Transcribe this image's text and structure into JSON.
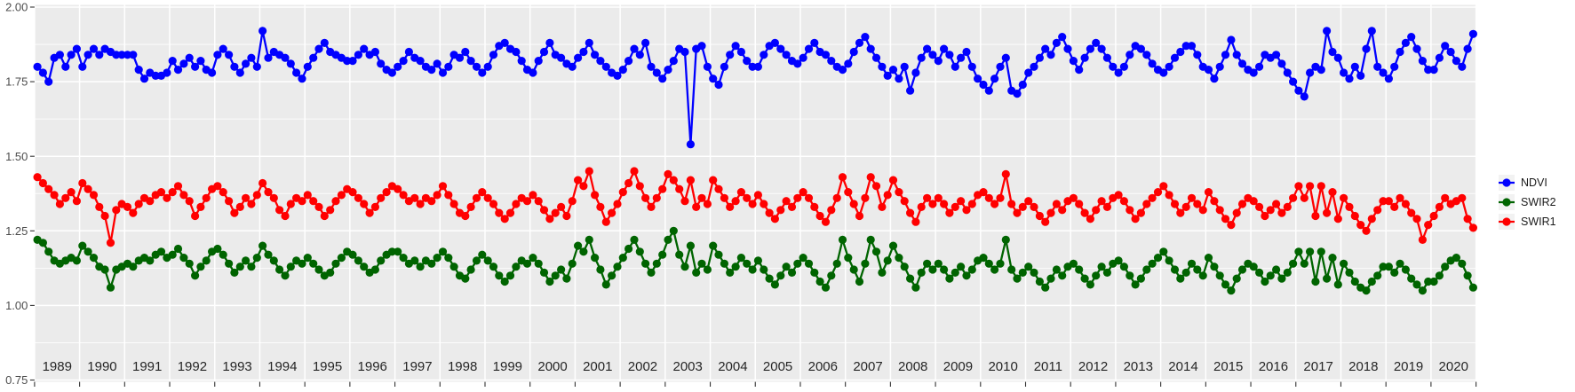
{
  "style": {
    "background": "#FFFFFF",
    "panel_fill": "#EBEBEB",
    "grid_color": "#FFFFFF",
    "tick_color": "#333333",
    "y_label_color": "#4d4d4d",
    "x_label_color": "#262626"
  },
  "axes": {
    "y": {
      "values": [
        2.0,
        1.75,
        1.5,
        1.25,
        1.0,
        0.75
      ],
      "labels": [
        "2.00",
        "1.75",
        "1.50",
        "1.25",
        "1.00",
        "0.75"
      ]
    },
    "x": {
      "first_year": 1989,
      "year_labels": [
        "1989",
        "1990",
        "1991",
        "1992",
        "1993",
        "1994",
        "1995",
        "1996",
        "1997",
        "1998",
        "1999",
        "2000",
        "2001",
        "2002",
        "2003",
        "2004",
        "2005",
        "2006",
        "2007",
        "2008",
        "2009",
        "2010",
        "2011",
        "2012",
        "2013",
        "2014",
        "2015",
        "2016",
        "2017",
        "2018",
        "2019",
        "2020"
      ]
    }
  },
  "legend": {
    "key_fill": "#F2F2F2",
    "items": [
      {
        "label": "NDVI",
        "color": "#0000FF"
      },
      {
        "label": "SWIR2",
        "color": "#006400"
      },
      {
        "label": "SWIR1",
        "color": "#FF0000"
      }
    ]
  },
  "chart_data": {
    "type": "line",
    "title": "",
    "xlabel": "",
    "ylabel": "",
    "xlim": [
      1989,
      2021
    ],
    "ylim": [
      0.75,
      2.0
    ],
    "grid": true,
    "legend_position": "right",
    "x_start": 1989.0625,
    "x_step": 0.125,
    "series": [
      {
        "name": "NDVI",
        "color": "#0000FF",
        "values": [
          1.8,
          1.78,
          1.75,
          1.83,
          1.84,
          1.8,
          1.84,
          1.86,
          1.8,
          1.84,
          1.86,
          1.84,
          1.86,
          1.85,
          1.84,
          1.84,
          1.84,
          1.84,
          1.79,
          1.76,
          1.78,
          1.77,
          1.77,
          1.78,
          1.82,
          1.79,
          1.81,
          1.83,
          1.8,
          1.82,
          1.79,
          1.78,
          1.84,
          1.86,
          1.84,
          1.8,
          1.78,
          1.81,
          1.83,
          1.8,
          1.92,
          1.83,
          1.85,
          1.84,
          1.83,
          1.81,
          1.78,
          1.76,
          1.8,
          1.83,
          1.86,
          1.88,
          1.85,
          1.84,
          1.83,
          1.82,
          1.82,
          1.84,
          1.86,
          1.84,
          1.85,
          1.81,
          1.79,
          1.78,
          1.8,
          1.82,
          1.85,
          1.83,
          1.82,
          1.8,
          1.79,
          1.81,
          1.78,
          1.8,
          1.84,
          1.83,
          1.85,
          1.82,
          1.8,
          1.78,
          1.8,
          1.84,
          1.87,
          1.88,
          1.86,
          1.85,
          1.82,
          1.79,
          1.78,
          1.82,
          1.85,
          1.88,
          1.84,
          1.83,
          1.81,
          1.8,
          1.83,
          1.85,
          1.88,
          1.84,
          1.82,
          1.8,
          1.78,
          1.77,
          1.79,
          1.82,
          1.86,
          1.84,
          1.88,
          1.8,
          1.78,
          1.76,
          1.79,
          1.82,
          1.86,
          1.85,
          1.54,
          1.86,
          1.87,
          1.8,
          1.76,
          1.74,
          1.8,
          1.84,
          1.87,
          1.85,
          1.82,
          1.8,
          1.8,
          1.84,
          1.87,
          1.88,
          1.86,
          1.84,
          1.82,
          1.81,
          1.83,
          1.86,
          1.88,
          1.85,
          1.84,
          1.82,
          1.8,
          1.79,
          1.81,
          1.85,
          1.88,
          1.9,
          1.86,
          1.83,
          1.8,
          1.77,
          1.79,
          1.76,
          1.8,
          1.72,
          1.78,
          1.83,
          1.86,
          1.84,
          1.82,
          1.86,
          1.84,
          1.8,
          1.83,
          1.85,
          1.8,
          1.76,
          1.74,
          1.72,
          1.76,
          1.8,
          1.83,
          1.72,
          1.71,
          1.74,
          1.78,
          1.8,
          1.83,
          1.86,
          1.84,
          1.88,
          1.9,
          1.86,
          1.82,
          1.79,
          1.83,
          1.86,
          1.88,
          1.86,
          1.83,
          1.8,
          1.78,
          1.8,
          1.84,
          1.87,
          1.86,
          1.84,
          1.81,
          1.79,
          1.78,
          1.8,
          1.83,
          1.85,
          1.87,
          1.87,
          1.84,
          1.8,
          1.79,
          1.76,
          1.8,
          1.84,
          1.89,
          1.84,
          1.81,
          1.79,
          1.78,
          1.8,
          1.84,
          1.83,
          1.84,
          1.81,
          1.78,
          1.75,
          1.72,
          1.7,
          1.78,
          1.8,
          1.79,
          1.92,
          1.85,
          1.83,
          1.78,
          1.76,
          1.8,
          1.77,
          1.86,
          1.92,
          1.8,
          1.78,
          1.76,
          1.8,
          1.85,
          1.88,
          1.9,
          1.86,
          1.82,
          1.79,
          1.79,
          1.83,
          1.87,
          1.85,
          1.82,
          1.8,
          1.86,
          1.91
        ]
      },
      {
        "name": "SWIR2",
        "color": "#006400",
        "values": [
          1.22,
          1.21,
          1.18,
          1.15,
          1.14,
          1.15,
          1.16,
          1.15,
          1.2,
          1.18,
          1.16,
          1.13,
          1.12,
          1.06,
          1.12,
          1.13,
          1.14,
          1.13,
          1.15,
          1.16,
          1.15,
          1.17,
          1.18,
          1.16,
          1.17,
          1.19,
          1.16,
          1.14,
          1.1,
          1.13,
          1.15,
          1.18,
          1.19,
          1.17,
          1.14,
          1.11,
          1.13,
          1.15,
          1.13,
          1.16,
          1.2,
          1.17,
          1.15,
          1.12,
          1.1,
          1.13,
          1.15,
          1.14,
          1.16,
          1.14,
          1.12,
          1.1,
          1.11,
          1.14,
          1.16,
          1.18,
          1.17,
          1.15,
          1.13,
          1.11,
          1.12,
          1.15,
          1.17,
          1.18,
          1.18,
          1.16,
          1.14,
          1.15,
          1.13,
          1.15,
          1.14,
          1.16,
          1.18,
          1.16,
          1.13,
          1.1,
          1.09,
          1.12,
          1.15,
          1.17,
          1.15,
          1.13,
          1.1,
          1.08,
          1.1,
          1.13,
          1.15,
          1.14,
          1.16,
          1.14,
          1.11,
          1.08,
          1.1,
          1.12,
          1.09,
          1.14,
          1.2,
          1.18,
          1.22,
          1.16,
          1.12,
          1.07,
          1.1,
          1.13,
          1.16,
          1.19,
          1.22,
          1.18,
          1.14,
          1.11,
          1.14,
          1.17,
          1.22,
          1.25,
          1.17,
          1.13,
          1.2,
          1.11,
          1.14,
          1.12,
          1.2,
          1.17,
          1.14,
          1.11,
          1.13,
          1.16,
          1.14,
          1.12,
          1.15,
          1.12,
          1.09,
          1.07,
          1.1,
          1.13,
          1.11,
          1.14,
          1.16,
          1.14,
          1.11,
          1.08,
          1.06,
          1.1,
          1.14,
          1.22,
          1.16,
          1.12,
          1.08,
          1.14,
          1.22,
          1.18,
          1.11,
          1.15,
          1.2,
          1.16,
          1.13,
          1.09,
          1.06,
          1.11,
          1.14,
          1.12,
          1.14,
          1.12,
          1.09,
          1.11,
          1.13,
          1.1,
          1.12,
          1.15,
          1.16,
          1.14,
          1.12,
          1.14,
          1.22,
          1.12,
          1.09,
          1.11,
          1.13,
          1.11,
          1.08,
          1.06,
          1.09,
          1.12,
          1.1,
          1.13,
          1.14,
          1.12,
          1.09,
          1.07,
          1.1,
          1.13,
          1.11,
          1.14,
          1.15,
          1.13,
          1.1,
          1.07,
          1.09,
          1.12,
          1.14,
          1.16,
          1.18,
          1.15,
          1.12,
          1.09,
          1.11,
          1.14,
          1.12,
          1.1,
          1.16,
          1.13,
          1.1,
          1.07,
          1.05,
          1.09,
          1.12,
          1.14,
          1.13,
          1.11,
          1.08,
          1.1,
          1.12,
          1.09,
          1.11,
          1.14,
          1.18,
          1.14,
          1.18,
          1.08,
          1.18,
          1.09,
          1.16,
          1.07,
          1.14,
          1.11,
          1.08,
          1.06,
          1.05,
          1.08,
          1.1,
          1.13,
          1.13,
          1.11,
          1.14,
          1.12,
          1.09,
          1.07,
          1.05,
          1.08,
          1.08,
          1.1,
          1.13,
          1.15,
          1.16,
          1.14,
          1.1,
          1.06
        ]
      },
      {
        "name": "SWIR1",
        "color": "#FF0000",
        "values": [
          1.43,
          1.41,
          1.39,
          1.37,
          1.34,
          1.36,
          1.38,
          1.35,
          1.41,
          1.39,
          1.37,
          1.33,
          1.3,
          1.21,
          1.32,
          1.34,
          1.33,
          1.31,
          1.34,
          1.36,
          1.35,
          1.37,
          1.38,
          1.36,
          1.38,
          1.4,
          1.37,
          1.35,
          1.3,
          1.33,
          1.36,
          1.39,
          1.4,
          1.38,
          1.35,
          1.31,
          1.33,
          1.36,
          1.34,
          1.37,
          1.41,
          1.38,
          1.36,
          1.32,
          1.3,
          1.34,
          1.36,
          1.35,
          1.37,
          1.35,
          1.33,
          1.3,
          1.32,
          1.35,
          1.37,
          1.39,
          1.38,
          1.36,
          1.34,
          1.31,
          1.33,
          1.36,
          1.38,
          1.4,
          1.39,
          1.37,
          1.35,
          1.36,
          1.34,
          1.36,
          1.35,
          1.37,
          1.4,
          1.37,
          1.34,
          1.31,
          1.3,
          1.33,
          1.36,
          1.38,
          1.36,
          1.34,
          1.31,
          1.29,
          1.31,
          1.34,
          1.36,
          1.35,
          1.37,
          1.35,
          1.32,
          1.29,
          1.31,
          1.33,
          1.3,
          1.35,
          1.42,
          1.4,
          1.45,
          1.37,
          1.33,
          1.28,
          1.31,
          1.34,
          1.38,
          1.41,
          1.45,
          1.4,
          1.36,
          1.33,
          1.36,
          1.39,
          1.44,
          1.42,
          1.39,
          1.35,
          1.42,
          1.33,
          1.36,
          1.34,
          1.42,
          1.39,
          1.36,
          1.33,
          1.35,
          1.38,
          1.36,
          1.34,
          1.37,
          1.34,
          1.31,
          1.29,
          1.32,
          1.35,
          1.33,
          1.36,
          1.38,
          1.36,
          1.33,
          1.3,
          1.28,
          1.32,
          1.36,
          1.43,
          1.38,
          1.34,
          1.3,
          1.36,
          1.43,
          1.4,
          1.33,
          1.37,
          1.42,
          1.38,
          1.35,
          1.31,
          1.28,
          1.33,
          1.36,
          1.34,
          1.36,
          1.34,
          1.31,
          1.33,
          1.35,
          1.32,
          1.34,
          1.37,
          1.38,
          1.36,
          1.34,
          1.36,
          1.44,
          1.34,
          1.31,
          1.33,
          1.35,
          1.33,
          1.3,
          1.28,
          1.31,
          1.34,
          1.32,
          1.35,
          1.36,
          1.34,
          1.31,
          1.29,
          1.32,
          1.35,
          1.33,
          1.36,
          1.37,
          1.35,
          1.32,
          1.29,
          1.31,
          1.34,
          1.36,
          1.38,
          1.4,
          1.37,
          1.34,
          1.31,
          1.33,
          1.36,
          1.34,
          1.32,
          1.38,
          1.35,
          1.32,
          1.29,
          1.27,
          1.31,
          1.34,
          1.36,
          1.35,
          1.33,
          1.3,
          1.32,
          1.34,
          1.31,
          1.33,
          1.36,
          1.4,
          1.36,
          1.4,
          1.3,
          1.4,
          1.31,
          1.38,
          1.29,
          1.36,
          1.33,
          1.3,
          1.27,
          1.25,
          1.29,
          1.32,
          1.35,
          1.35,
          1.33,
          1.36,
          1.34,
          1.31,
          1.29,
          1.22,
          1.27,
          1.3,
          1.33,
          1.36,
          1.34,
          1.35,
          1.36,
          1.29,
          1.26
        ]
      }
    ]
  }
}
